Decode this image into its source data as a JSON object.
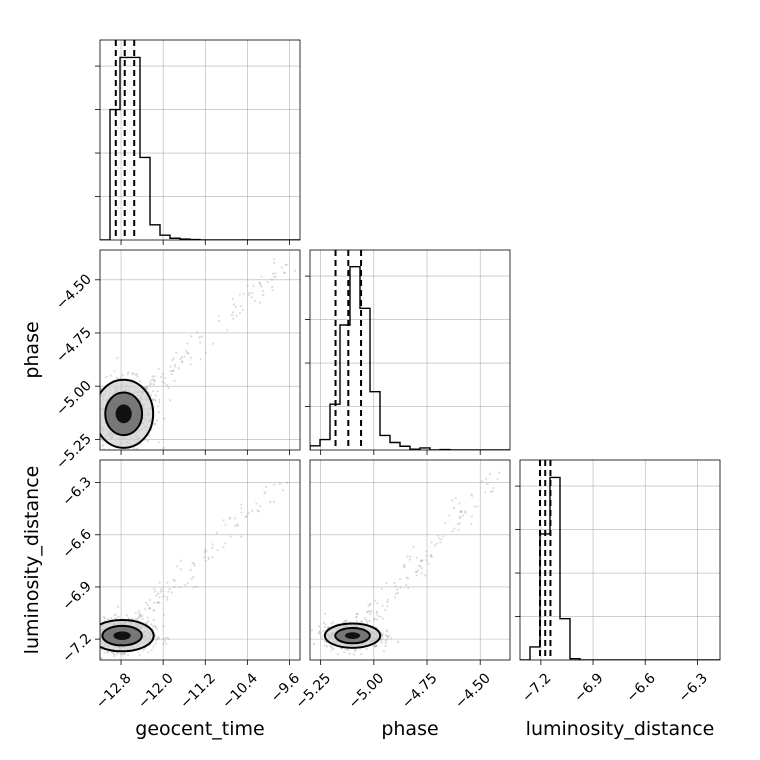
{
  "chart_data": {
    "type": "corner",
    "parameters": [
      "geocent_time",
      "phase",
      "luminosity_distance"
    ],
    "axes": {
      "geocent_time": {
        "range": [
          -13.2,
          -9.4
        ],
        "ticks": [
          -12.8,
          -12.0,
          -11.2,
          -10.4,
          -9.6
        ],
        "tick_labels": [
          "−12.8",
          "−12.0",
          "−11.2",
          "−10.4",
          "−9.6"
        ]
      },
      "phase": {
        "range": [
          -5.3,
          -4.36
        ],
        "ticks": [
          -5.25,
          -5.0,
          -4.75,
          -4.5
        ],
        "tick_labels": [
          "−5.25",
          "−5.00",
          "−4.75",
          "−4.50"
        ]
      },
      "luminosity_distance": {
        "range": [
          -7.32,
          -6.17
        ],
        "ticks": [
          -7.2,
          -6.9,
          -6.6,
          -6.3
        ],
        "tick_labels": [
          "−7.2",
          "−6.9",
          "−6.6",
          "−6.3"
        ]
      }
    },
    "histograms": {
      "geocent_time": {
        "edges_start": -13.2,
        "bin_width": 0.19,
        "counts": [
          0,
          30,
          42,
          42,
          19,
          3.5,
          1.1,
          0.4,
          0.2,
          0.1,
          0,
          0,
          0,
          0,
          0,
          0,
          0,
          0,
          0,
          0
        ],
        "ymax": 46,
        "quantiles": [
          -12.9,
          -12.73,
          -12.55
        ]
      },
      "phase": {
        "edges_start": -5.3,
        "bin_width": 0.047,
        "counts": [
          1,
          2.5,
          11,
          30,
          44,
          34,
          14,
          3.5,
          1.8,
          0.9,
          0.2,
          0.5,
          0,
          0.1,
          0,
          0,
          0,
          0,
          0,
          0
        ],
        "ymax": 48,
        "quantiles": [
          -5.18,
          -5.12,
          -5.06
        ]
      },
      "luminosity_distance": {
        "edges_start": -7.32,
        "bin_width": 0.0575,
        "counts": [
          0,
          3,
          29,
          42,
          9.5,
          0.3,
          0,
          0,
          0,
          0,
          0,
          0,
          0,
          0,
          0,
          0,
          0,
          0,
          0,
          0
        ],
        "ymax": 46,
        "quantiles": [
          -7.205,
          -7.175,
          -7.145
        ]
      }
    },
    "pairs": [
      {
        "x": "geocent_time",
        "y": "phase",
        "center": [
          -12.75,
          -5.13
        ],
        "spread": [
          0.28,
          0.08
        ]
      },
      {
        "x": "geocent_time",
        "y": "luminosity_distance",
        "center": [
          -12.78,
          -7.18
        ],
        "spread": [
          0.3,
          0.045
        ]
      },
      {
        "x": "phase",
        "y": "luminosity_distance",
        "center": [
          -5.1,
          -7.18
        ],
        "spread": [
          0.065,
          0.035
        ]
      }
    ],
    "grid": true,
    "xlabels": [
      "geocent_time",
      "phase",
      "luminosity_distance"
    ],
    "ylabels": [
      "phase",
      "luminosity_distance"
    ]
  }
}
